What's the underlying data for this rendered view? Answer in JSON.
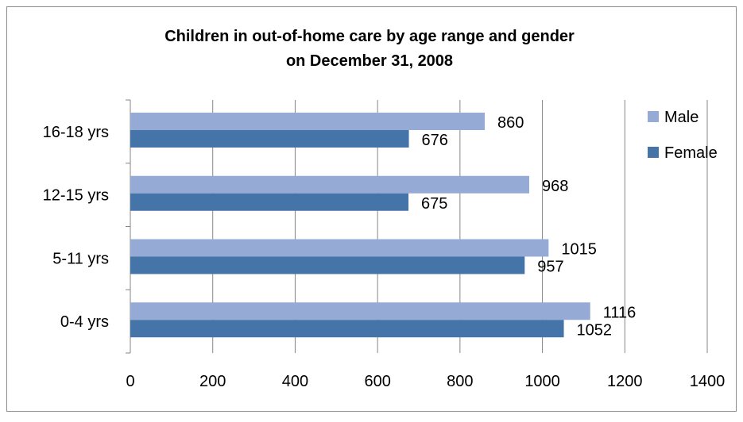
{
  "chart_data": {
    "type": "bar",
    "orientation": "horizontal",
    "title": "Children in out-of-home care by age range and gender",
    "subtitle": "on December 31, 2008",
    "categories": [
      "16-18 yrs",
      "12-15 yrs",
      "5-11 yrs",
      "0-4 yrs"
    ],
    "series": [
      {
        "name": "Male",
        "values": [
          860,
          968,
          1015,
          1116
        ],
        "color": "#95aad4"
      },
      {
        "name": "Female",
        "values": [
          676,
          675,
          957,
          1052
        ],
        "color": "#4574a8"
      }
    ],
    "xlim": [
      0,
      1400
    ],
    "x_ticks": [
      "0",
      "200",
      "400",
      "600",
      "800",
      "1000",
      "1200",
      "1400"
    ],
    "grid": "vertical",
    "legend": "right",
    "data_labels": true
  }
}
